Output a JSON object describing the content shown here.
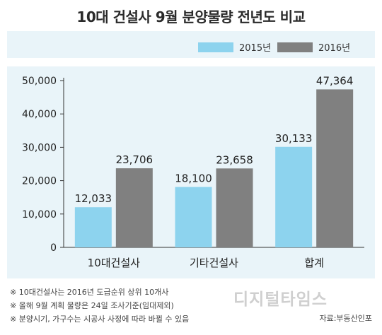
{
  "title": "10대 건설사 9월 분양물량 전년도 비교",
  "legend": [
    {
      "label": "2015년",
      "color": "#8dd3ee"
    },
    {
      "label": "2016년",
      "color": "#808080"
    }
  ],
  "chart_data": {
    "type": "bar",
    "title": "10대 건설사 9월 분양물량 전년도 비교",
    "categories": [
      "10대건설사",
      "기타건설사",
      "합계"
    ],
    "series": [
      {
        "name": "2015년",
        "values": [
          12033,
          18100,
          30133
        ],
        "color": "#8dd3ee"
      },
      {
        "name": "2016년",
        "values": [
          23706,
          23658,
          47364
        ],
        "color": "#808080"
      }
    ],
    "data_labels": [
      [
        "12,033",
        "18,100",
        "30,133"
      ],
      [
        "23,706",
        "23,658",
        "47,364"
      ]
    ],
    "ylim": [
      0,
      50000
    ],
    "yticks": [
      0,
      10000,
      20000,
      30000,
      40000,
      50000
    ],
    "ytick_labels": [
      "0",
      "10,000",
      "20,000",
      "30,000",
      "40,000",
      "50,000"
    ],
    "grid": false,
    "legend_position": "top-right"
  },
  "notes": [
    "※ 10대건설사는 2016년 도급순위 상위 10개사",
    "※ 올해 9월 계획 물량은 24일 조사기준(임대제외)",
    "※ 분양시기, 가구수는 시공사 사정에 따라 바뀔 수 있음"
  ],
  "source": "자료:부동산인포",
  "watermark": "디지털타임스"
}
